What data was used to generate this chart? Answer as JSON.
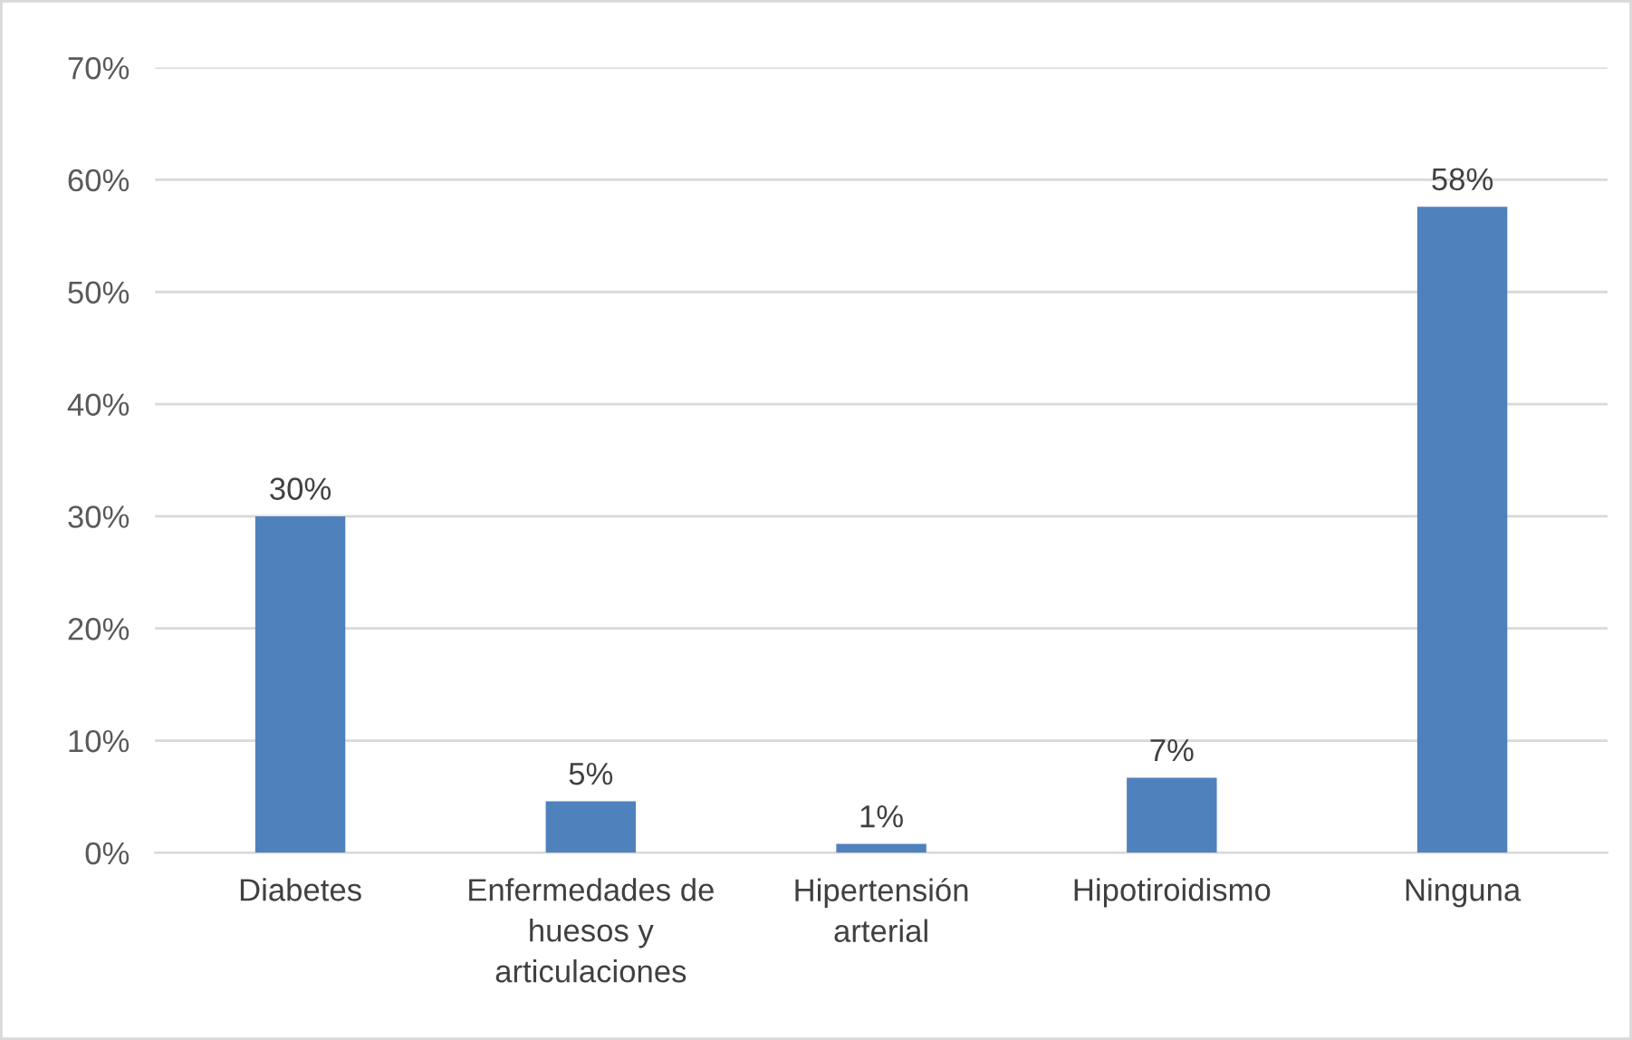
{
  "chart_data": {
    "type": "bar",
    "categories": [
      "Diabetes",
      "Enfermedades de\nhuesos y\narticulaciones",
      "Hipertensión\narterial",
      "Hipotiroidismo",
      "Ninguna"
    ],
    "values": [
      30.0,
      4.6,
      0.8,
      6.7,
      57.6
    ],
    "value_labels": [
      "30%",
      "5%",
      "1%",
      "7%",
      "58%"
    ],
    "color": "#4f81bd",
    "ylim": [
      0,
      70
    ],
    "yticks": [
      {
        "value": 0,
        "label": "0%"
      },
      {
        "value": 10,
        "label": "10%"
      },
      {
        "value": 20,
        "label": "20%"
      },
      {
        "value": 30,
        "label": "30%"
      },
      {
        "value": 40,
        "label": "40%"
      },
      {
        "value": 50,
        "label": "50%"
      },
      {
        "value": 60,
        "label": "60%"
      },
      {
        "value": 70,
        "label": "70%"
      }
    ],
    "grid": "y",
    "legend": false
  }
}
